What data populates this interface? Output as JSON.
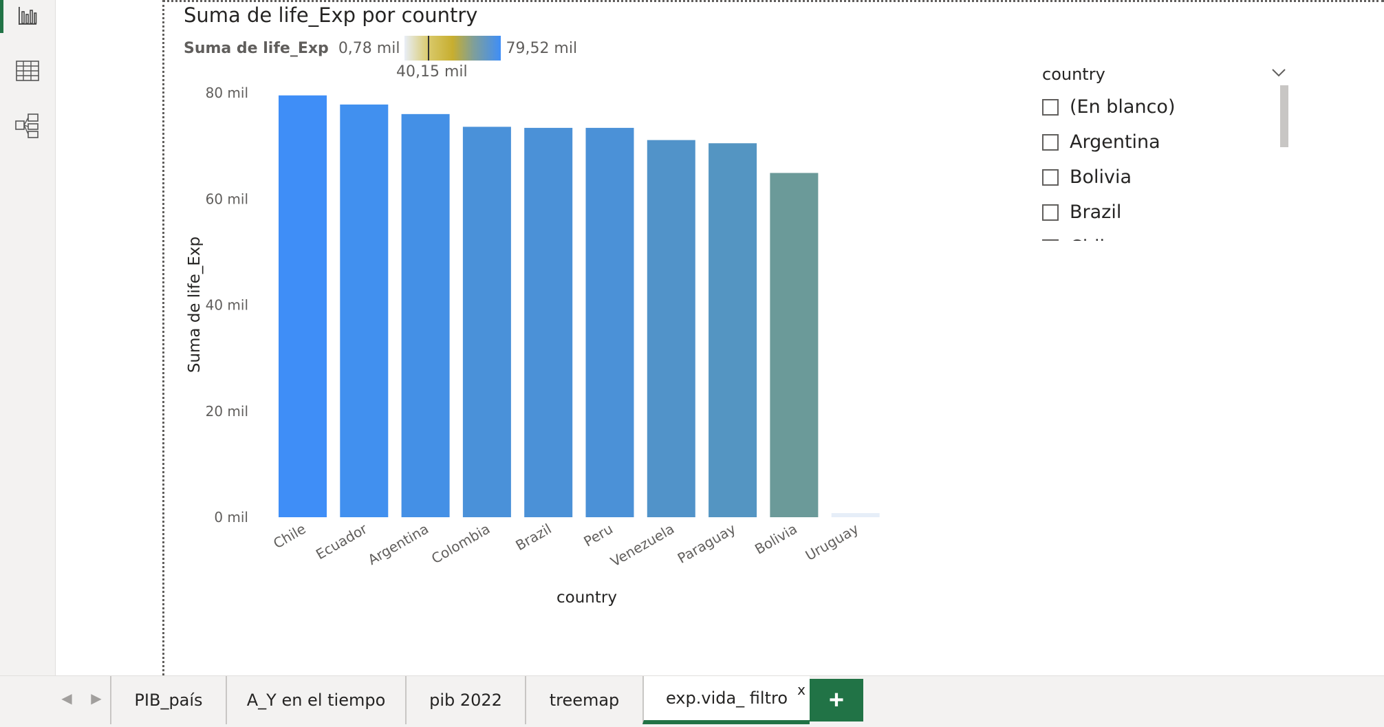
{
  "rail": {
    "items": [
      {
        "name": "report-view-icon",
        "active": true
      },
      {
        "name": "table-view-icon",
        "active": false
      },
      {
        "name": "model-view-icon",
        "active": false
      }
    ]
  },
  "visual": {
    "title": "Suma de life_Exp por country",
    "legend": {
      "title": "Suma de life_Exp",
      "min": "0,78 mil",
      "mid": "40,15 mil",
      "max": "79,52 mil"
    }
  },
  "chart_data": {
    "type": "bar",
    "title": "Suma de life_Exp por country",
    "xlabel": "country",
    "ylabel": "Suma de life_Exp",
    "ylim": [
      0,
      80
    ],
    "y_ticks": [
      "0 mil",
      "20 mil",
      "40 mil",
      "60 mil",
      "80 mil"
    ],
    "categories": [
      "Chile",
      "Ecuador",
      "Argentina",
      "Colombia",
      "Brazil",
      "Peru",
      "Venezuela",
      "Paraguay",
      "Bolivia",
      "Uruguay"
    ],
    "values": [
      79.52,
      77.8,
      76.0,
      73.6,
      73.4,
      73.4,
      71.1,
      70.5,
      64.9,
      0.78
    ],
    "colors": [
      "#3f8ef7",
      "#4190ef",
      "#4490e6",
      "#4a91d9",
      "#4b91d7",
      "#4b91d7",
      "#5193c9",
      "#5495c2",
      "#6b9a99",
      "#e6eef8"
    ],
    "grid": false,
    "legend": "top-left gradient"
  },
  "slicer": {
    "title": "country",
    "items": [
      "(En blanco)",
      "Argentina",
      "Bolivia",
      "Brazil",
      "Chile"
    ]
  },
  "tabs": {
    "items": [
      {
        "label": "PIB_país",
        "active": false
      },
      {
        "label": "A_Y en el tiempo",
        "active": false
      },
      {
        "label": "pib 2022",
        "active": false
      },
      {
        "label": "treemap",
        "active": false
      },
      {
        "label": "exp.vida_ filtro",
        "active": true
      }
    ],
    "close_label": "x",
    "add_label": "+"
  }
}
